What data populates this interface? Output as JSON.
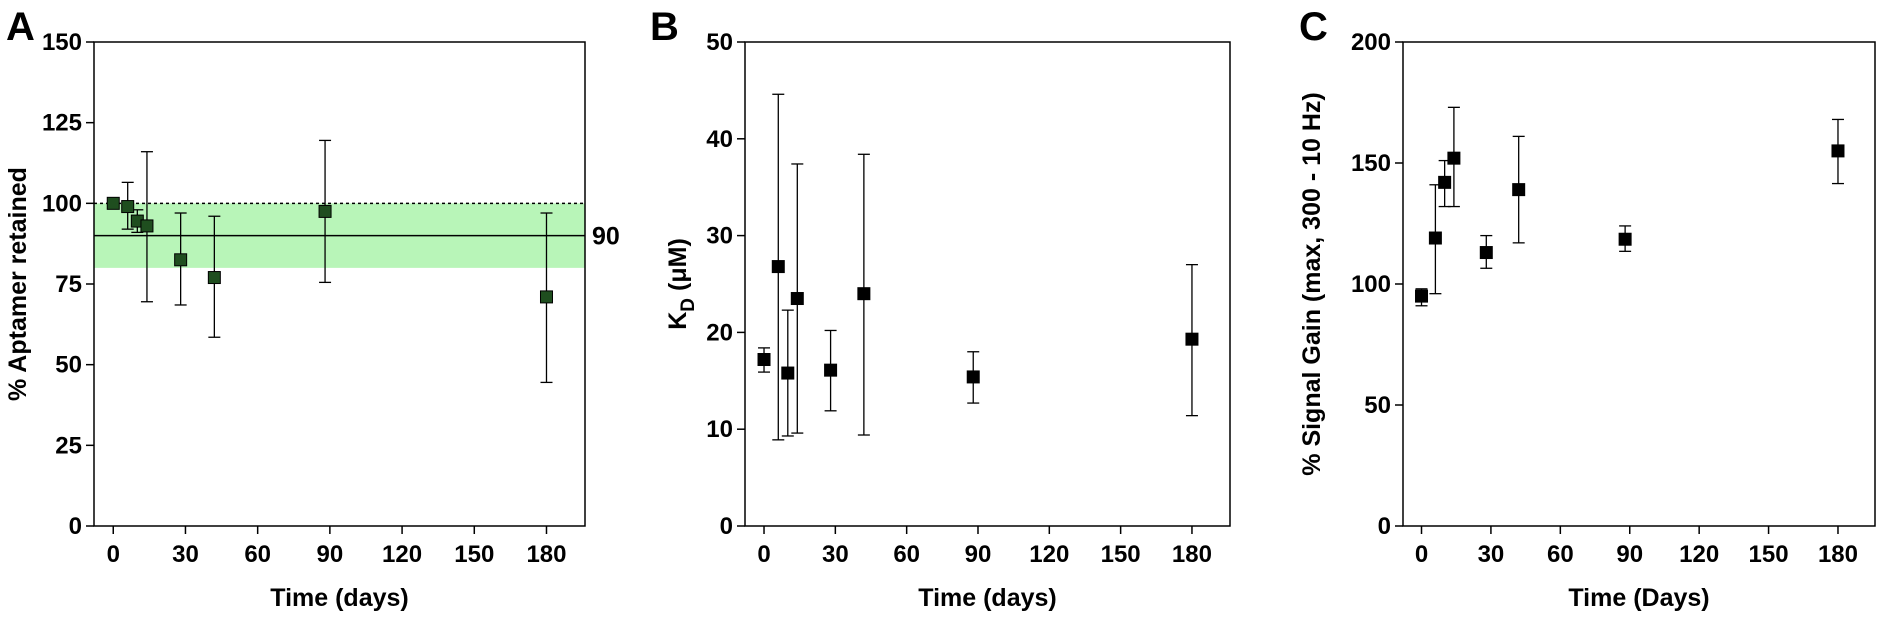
{
  "chart_data": [
    {
      "type": "scatter",
      "panel_label": "A",
      "xlabel": "Time (days)",
      "ylabel": "% Aptamer retained",
      "xlim": [
        -8,
        196
      ],
      "ylim": [
        0,
        150
      ],
      "xticks": [
        0,
        30,
        60,
        90,
        120,
        150,
        180
      ],
      "yticks": [
        0,
        25,
        50,
        75,
        100,
        125,
        150
      ],
      "x_tick_labels": [
        "0",
        "30",
        "60",
        "90",
        "120",
        "150",
        "180"
      ],
      "y_tick_labels": [
        "0",
        "25",
        "50",
        "75",
        "100",
        "125",
        "150"
      ],
      "grid": false,
      "marker_color": "#1f4e1f",
      "shaded_band": {
        "y0": 80,
        "y1": 100,
        "color": "#b8f5b8"
      },
      "reference_line": {
        "y": 90,
        "label": "90",
        "style": "solid"
      },
      "dotted_line": {
        "y": 100
      },
      "series": [
        {
          "x": [
            0,
            6,
            10,
            14,
            28,
            42,
            88,
            180
          ],
          "y": [
            100,
            99,
            94.5,
            93,
            82.5,
            77,
            97.5,
            71
          ],
          "err_low": [
            null,
            92,
            91,
            69.5,
            68.5,
            58.5,
            75.5,
            44.5
          ],
          "err_high": [
            null,
            106.5,
            98,
            116,
            97,
            96,
            119.5,
            97
          ]
        }
      ]
    },
    {
      "type": "scatter",
      "panel_label": "B",
      "xlabel": "Time (days)",
      "ylabel_main": "K",
      "ylabel_sub": "D",
      "ylabel_rest": " (μM)",
      "xlim": [
        -8,
        196
      ],
      "ylim": [
        0,
        50
      ],
      "xticks": [
        0,
        30,
        60,
        90,
        120,
        150,
        180
      ],
      "yticks": [
        0,
        10,
        20,
        30,
        40,
        50
      ],
      "x_tick_labels": [
        "0",
        "30",
        "60",
        "90",
        "120",
        "150",
        "180"
      ],
      "y_tick_labels": [
        "0",
        "10",
        "20",
        "30",
        "40",
        "50"
      ],
      "grid": false,
      "marker_color": "#000000",
      "series": [
        {
          "x": [
            0,
            6,
            10,
            14,
            28,
            42,
            88,
            180
          ],
          "y": [
            17.2,
            26.8,
            15.8,
            23.5,
            16.1,
            24,
            15.4,
            19.3
          ],
          "err_low": [
            15.9,
            8.9,
            9.3,
            9.6,
            11.9,
            9.4,
            12.7,
            11.4
          ],
          "err_high": [
            18.4,
            44.6,
            22.3,
            37.4,
            20.2,
            38.4,
            18,
            27
          ]
        }
      ]
    },
    {
      "type": "scatter",
      "panel_label": "C",
      "xlabel": "Time (Days)",
      "ylabel": "% Signal Gain (max, 300 - 10 Hz)",
      "xlim": [
        -8,
        196
      ],
      "ylim": [
        0,
        200
      ],
      "xticks": [
        0,
        30,
        60,
        90,
        120,
        150,
        180
      ],
      "yticks": [
        0,
        50,
        100,
        150,
        200
      ],
      "x_tick_labels": [
        "0",
        "30",
        "60",
        "90",
        "120",
        "150",
        "180"
      ],
      "y_tick_labels": [
        "0",
        "50",
        "100",
        "150",
        "200"
      ],
      "grid": false,
      "marker_color": "#000000",
      "series": [
        {
          "x": [
            0,
            6,
            10,
            14,
            28,
            42,
            88,
            180
          ],
          "y": [
            95,
            119,
            142,
            152,
            113,
            139,
            118.5,
            155
          ],
          "err_low": [
            91,
            96,
            132,
            132,
            106.5,
            117,
            113.5,
            141.5
          ],
          "err_high": [
            98,
            141,
            151,
            173,
            120,
            161,
            124,
            168
          ]
        }
      ]
    }
  ]
}
